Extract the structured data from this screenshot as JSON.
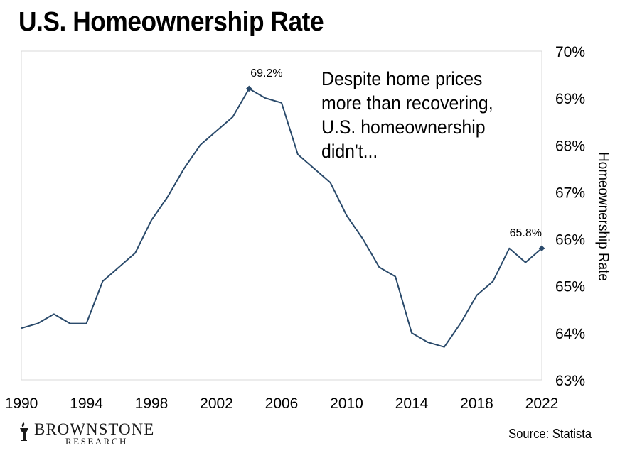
{
  "title": "U.S. Homeownership Rate",
  "annotation": "Despite home prices more than recovering, U.S. homeownership didn't...",
  "source": "Source: Statista",
  "logo": {
    "name": "BROWNSTONE",
    "sub": "RESEARCH",
    "icon": "torch-icon"
  },
  "colors": {
    "line": "#2a4a6b",
    "grid": "#d9d9d9",
    "text": "#000000"
  },
  "chart_data": {
    "type": "line",
    "title": "U.S. Homeownership Rate",
    "ylabel": "Homeownership Rate",
    "xlabel": "",
    "xlim": [
      1990,
      2022
    ],
    "ylim": [
      63,
      70
    ],
    "y_axis_side": "right",
    "grid": false,
    "x_ticks": [
      1990,
      1994,
      1998,
      2002,
      2006,
      2010,
      2014,
      2018,
      2022
    ],
    "y_ticks": [
      {
        "value": 63,
        "label": "63%"
      },
      {
        "value": 64,
        "label": "64%"
      },
      {
        "value": 65,
        "label": "65%"
      },
      {
        "value": 66,
        "label": "66%"
      },
      {
        "value": 67,
        "label": "67%"
      },
      {
        "value": 68,
        "label": "68%"
      },
      {
        "value": 69,
        "label": "69%"
      },
      {
        "value": 70,
        "label": "70%"
      }
    ],
    "series": [
      {
        "x": [
          1990,
          1991,
          1992,
          1993,
          1994,
          1995,
          1996,
          1997,
          1998,
          1999,
          2000,
          2001,
          2002,
          2003,
          2004,
          2005,
          2006,
          2007,
          2008,
          2009,
          2010,
          2011,
          2012,
          2013,
          2014,
          2015,
          2016,
          2017,
          2018,
          2019,
          2020,
          2021,
          2022
        ],
        "values": [
          64.1,
          64.2,
          64.4,
          64.2,
          64.2,
          65.1,
          65.4,
          65.7,
          66.4,
          66.9,
          67.5,
          68.0,
          68.3,
          68.6,
          69.2,
          69.0,
          68.9,
          67.8,
          67.5,
          67.2,
          66.5,
          66.0,
          65.4,
          65.2,
          64.0,
          63.8,
          63.7,
          64.2,
          64.8,
          65.1,
          65.8,
          65.5,
          65.8
        ]
      }
    ],
    "data_labels": [
      {
        "x": 2004,
        "value": 69.2,
        "label": "69.2%"
      },
      {
        "x": 2022,
        "value": 65.8,
        "label": "65.8%"
      }
    ]
  }
}
